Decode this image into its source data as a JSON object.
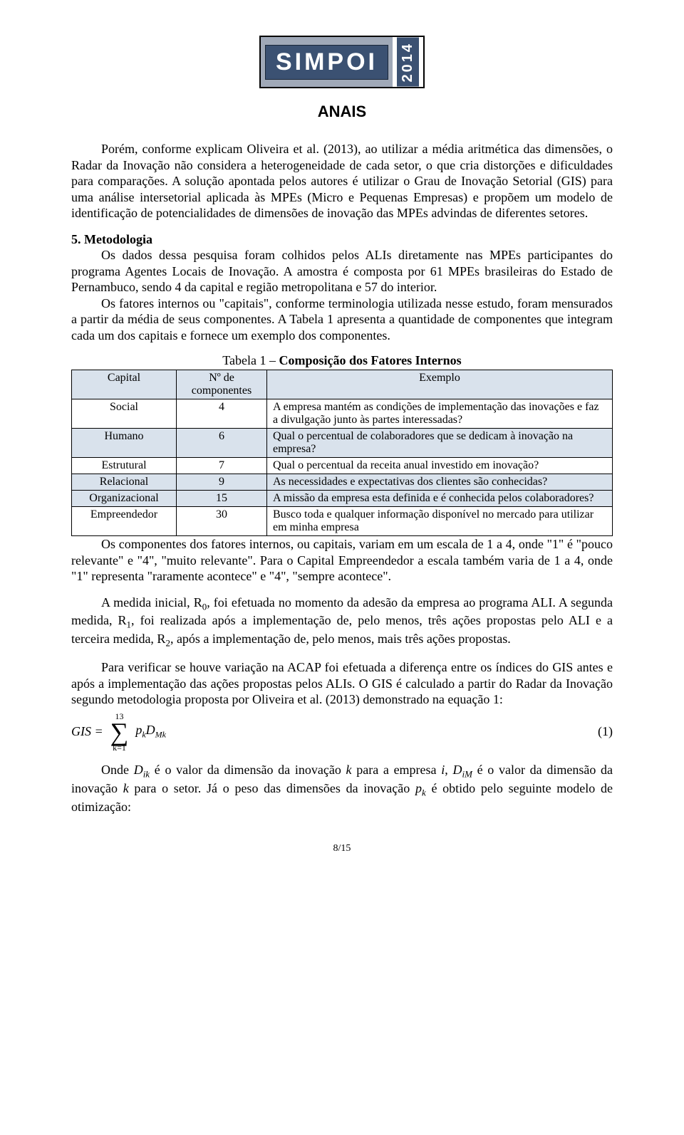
{
  "logo": {
    "brand": "SIMPOI",
    "year": "2014"
  },
  "anais": "ANAIS",
  "para1": "Porém, conforme explicam Oliveira et al. (2013), ao utilizar a média aritmética das dimensões, o Radar da Inovação não considera a heterogeneidade de cada setor, o que cria distorções e dificuldades para comparações. A solução apontada pelos autores é utilizar o Grau de Inovação Setorial (GIS) para uma análise intersetorial aplicada às MPEs (Micro e Pequenas Empresas) e propõem um modelo de identificação de potencialidades de dimensões de inovação das MPEs advindas de diferentes setores.",
  "section5": {
    "head": "5. Metodologia",
    "p1": "Os dados dessa pesquisa foram colhidos pelos ALIs diretamente nas MPEs participantes do programa Agentes Locais de Inovação. A amostra é composta por 61 MPEs brasileiras do Estado de Pernambuco, sendo 4 da capital e região metropolitana e 57 do interior.",
    "p2": "Os fatores internos ou \"capitais\", conforme terminologia utilizada nesse estudo, foram mensurados a partir da média de seus componentes. A Tabela 1 apresenta a quantidade de componentes que integram cada um dos capitais e fornece um exemplo dos componentes."
  },
  "table1": {
    "caption_prefix": "Tabela 1 – ",
    "caption_bold": "Composição dos Fatores Internos",
    "headers": {
      "c1": "Capital",
      "c2": "Nº de componentes",
      "c3": "Exemplo"
    },
    "rows": [
      {
        "capital": "Social",
        "n": "4",
        "ex": "A empresa mantém as condições de implementação das inovações e faz a divulgação junto às partes interessadas?",
        "shade": false
      },
      {
        "capital": "Humano",
        "n": "6",
        "ex": "Qual o percentual de colaboradores que se dedicam à inovação na empresa?",
        "shade": true
      },
      {
        "capital": "Estrutural",
        "n": "7",
        "ex": "Qual o percentual da receita anual investido em inovação?",
        "shade": false
      },
      {
        "capital": "Relacional",
        "n": "9",
        "ex": "As necessidades e expectativas dos clientes são conhecidas?",
        "shade": true
      },
      {
        "capital": "Organizacional",
        "n": "15",
        "ex": "A missão da empresa esta definida e é conhecida pelos colaboradores?",
        "shade": true
      },
      {
        "capital": "Empreendedor",
        "n": "30",
        "ex": "Busco toda e qualquer informação disponível no mercado para utilizar em minha empresa",
        "shade": false
      }
    ]
  },
  "after_p1": "Os componentes dos fatores internos, ou capitais, variam em um escala de 1 a 4, onde \"1\" é \"pouco relevante\" e \"4\", \"muito relevante\". Para o Capital Empreendedor a escala também varia de 1 a 4, onde \"1\" representa \"raramente acontece\" e \"4\", \"sempre acontece\".",
  "after_p2_a": "A medida inicial, R",
  "after_p2_sub0": "0",
  "after_p2_b": ", foi efetuada no momento da adesão da empresa ao programa ALI. A segunda medida, R",
  "after_p2_sub1": "1",
  "after_p2_c": ", foi realizada após a implementação de, pelo menos, três ações propostas pelo ALI e a terceira medida, R",
  "after_p2_sub2": "2",
  "after_p2_d": ", após a implementação de, pelo menos, mais três ações propostas.",
  "after_p3": "Para verificar se houve variação na ACAP foi efetuada a diferença entre os índices do GIS antes e após a implementação das ações propostas pelos ALIs. O GIS é calculado a partir do Radar da Inovação segundo metodologia proposta por Oliveira et al. (2013) demonstrado na equação 1:",
  "equation": {
    "lhs": "GIS =",
    "sum_top": "13",
    "sum_bot": "k=1",
    "term_p": "p",
    "term_p_sub": "k",
    "term_D": "D",
    "term_D_sub": "Mk",
    "num": "(1)"
  },
  "last_p_a": "Onde ",
  "last_p_Dik": "D",
  "last_p_Dik_sub": "ik",
  "last_p_b": " é o valor da dimensão da inovação ",
  "last_p_k1": "k",
  "last_p_c": " para a empresa ",
  "last_p_i": "i",
  "last_p_d": ", ",
  "last_p_DiM": "D",
  "last_p_DiM_sub": "iM",
  "last_p_e": " é o valor da dimensão da inovação ",
  "last_p_k2": "k",
  "last_p_f": " para o setor. Já o peso das dimensões da inovação ",
  "last_p_pk": "p",
  "last_p_pk_sub": "k",
  "last_p_g": " é obtido pelo seguinte modelo de otimização:",
  "pagenum": "8/15"
}
